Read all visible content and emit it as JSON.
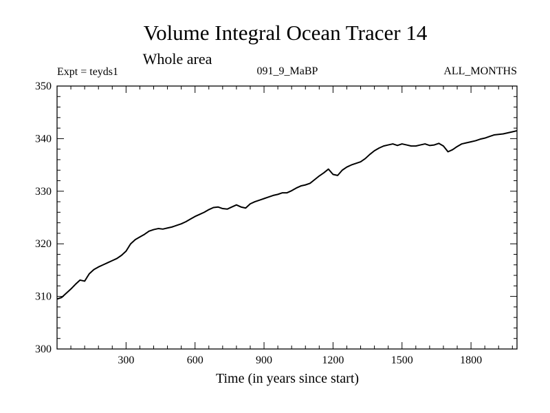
{
  "chart_data": {
    "type": "line",
    "title": "Volume Integral Ocean Tracer 14",
    "subtitle": "Whole area",
    "annotations": {
      "left": "Expt = teyds1",
      "center": "091_9_MaBP",
      "right": "ALL_MONTHS"
    },
    "xlabel": "Time (in years since start)",
    "ylabel": "",
    "xlim": [
      0,
      2000
    ],
    "ylim": [
      300,
      350
    ],
    "x_ticks": [
      300,
      600,
      900,
      1200,
      1500,
      1800
    ],
    "y_ticks": [
      300,
      310,
      320,
      330,
      340,
      350
    ],
    "grid": false,
    "series": [
      {
        "color": "#000000",
        "points": [
          [
            0,
            309.5
          ],
          [
            20,
            309.8
          ],
          [
            40,
            310.6
          ],
          [
            60,
            311.4
          ],
          [
            80,
            312.3
          ],
          [
            100,
            313.1
          ],
          [
            120,
            312.9
          ],
          [
            140,
            314.3
          ],
          [
            160,
            315.1
          ],
          [
            180,
            315.6
          ],
          [
            200,
            316.0
          ],
          [
            220,
            316.4
          ],
          [
            240,
            316.8
          ],
          [
            260,
            317.2
          ],
          [
            280,
            317.8
          ],
          [
            300,
            318.6
          ],
          [
            320,
            320.0
          ],
          [
            340,
            320.8
          ],
          [
            360,
            321.3
          ],
          [
            380,
            321.8
          ],
          [
            400,
            322.4
          ],
          [
            420,
            322.7
          ],
          [
            440,
            322.9
          ],
          [
            460,
            322.8
          ],
          [
            480,
            323.0
          ],
          [
            500,
            323.2
          ],
          [
            520,
            323.5
          ],
          [
            540,
            323.8
          ],
          [
            560,
            324.2
          ],
          [
            580,
            324.7
          ],
          [
            600,
            325.2
          ],
          [
            620,
            325.6
          ],
          [
            640,
            326.0
          ],
          [
            660,
            326.5
          ],
          [
            680,
            326.9
          ],
          [
            700,
            327.0
          ],
          [
            720,
            326.7
          ],
          [
            740,
            326.6
          ],
          [
            760,
            327.0
          ],
          [
            780,
            327.4
          ],
          [
            800,
            327.0
          ],
          [
            820,
            326.8
          ],
          [
            840,
            327.6
          ],
          [
            860,
            328.0
          ],
          [
            880,
            328.3
          ],
          [
            900,
            328.6
          ],
          [
            920,
            328.9
          ],
          [
            940,
            329.2
          ],
          [
            960,
            329.4
          ],
          [
            980,
            329.7
          ],
          [
            1000,
            329.7
          ],
          [
            1020,
            330.1
          ],
          [
            1040,
            330.6
          ],
          [
            1060,
            331.0
          ],
          [
            1080,
            331.2
          ],
          [
            1100,
            331.5
          ],
          [
            1120,
            332.2
          ],
          [
            1140,
            332.9
          ],
          [
            1160,
            333.5
          ],
          [
            1180,
            334.2
          ],
          [
            1200,
            333.2
          ],
          [
            1220,
            333.0
          ],
          [
            1240,
            334.0
          ],
          [
            1260,
            334.6
          ],
          [
            1280,
            335.0
          ],
          [
            1300,
            335.3
          ],
          [
            1320,
            335.6
          ],
          [
            1340,
            336.2
          ],
          [
            1360,
            337.0
          ],
          [
            1380,
            337.7
          ],
          [
            1400,
            338.2
          ],
          [
            1420,
            338.6
          ],
          [
            1440,
            338.8
          ],
          [
            1460,
            339.0
          ],
          [
            1480,
            338.7
          ],
          [
            1500,
            339.0
          ],
          [
            1520,
            338.8
          ],
          [
            1540,
            338.6
          ],
          [
            1560,
            338.6
          ],
          [
            1580,
            338.8
          ],
          [
            1600,
            339.0
          ],
          [
            1620,
            338.7
          ],
          [
            1640,
            338.8
          ],
          [
            1660,
            339.1
          ],
          [
            1680,
            338.6
          ],
          [
            1700,
            337.5
          ],
          [
            1720,
            337.9
          ],
          [
            1740,
            338.5
          ],
          [
            1760,
            339.0
          ],
          [
            1780,
            339.2
          ],
          [
            1800,
            339.4
          ],
          [
            1820,
            339.6
          ],
          [
            1840,
            339.9
          ],
          [
            1860,
            340.1
          ],
          [
            1880,
            340.4
          ],
          [
            1900,
            340.7
          ],
          [
            1920,
            340.8
          ],
          [
            1940,
            340.9
          ],
          [
            1960,
            341.1
          ],
          [
            1980,
            341.3
          ],
          [
            2000,
            341.5
          ]
        ]
      }
    ]
  }
}
